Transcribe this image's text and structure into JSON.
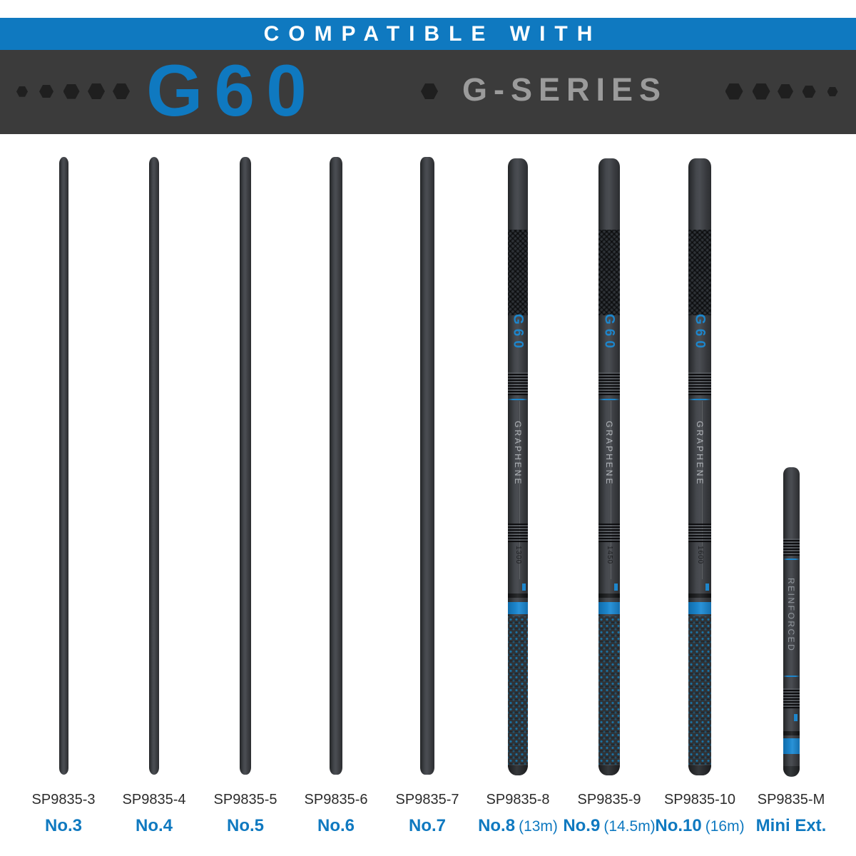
{
  "header": {
    "compatible": "COMPATIBLE WITH",
    "model": "G60",
    "series": "G-SERIES"
  },
  "colors": {
    "accent_blue": "#0f79c0",
    "band_blue": "#1d86cc",
    "banner_dark": "#3b3b3b",
    "hex_dark": "#1f1f1f",
    "series_gray": "#9b9b9b",
    "sku_dark": "#2b2b2b"
  },
  "pole_graphics": {
    "brand_mark": "G60",
    "material_mark": "GRAPHENE",
    "mini_mark": "REINFORCED"
  },
  "poles": [
    {
      "sku": "SP9835-3",
      "label": "No.3",
      "size": "",
      "kind": "plain"
    },
    {
      "sku": "SP9835-4",
      "label": "No.4",
      "size": "",
      "kind": "plain"
    },
    {
      "sku": "SP9835-5",
      "label": "No.5",
      "size": "",
      "kind": "plain"
    },
    {
      "sku": "SP9835-6",
      "label": "No.6",
      "size": "",
      "kind": "plain"
    },
    {
      "sku": "SP9835-7",
      "label": "No.7",
      "size": "",
      "kind": "plain"
    },
    {
      "sku": "SP9835-8",
      "label": "No.8",
      "size": "(13m)",
      "kind": "branded",
      "length_mark": "1300"
    },
    {
      "sku": "SP9835-9",
      "label": "No.9",
      "size": "(14.5m)",
      "kind": "branded",
      "length_mark": "1450"
    },
    {
      "sku": "SP9835-10",
      "label": "No.10",
      "size": "(16m)",
      "kind": "branded",
      "length_mark": "1600"
    },
    {
      "sku": "SP9835-M",
      "label": "Mini Ext.",
      "size": "",
      "kind": "mini"
    }
  ],
  "decor": {
    "left_hex_sizes": [
      16,
      20,
      23,
      24,
      24
    ],
    "right_hex_sizes": [
      25,
      25,
      22,
      19,
      15
    ],
    "mid_hex_size": 24
  }
}
